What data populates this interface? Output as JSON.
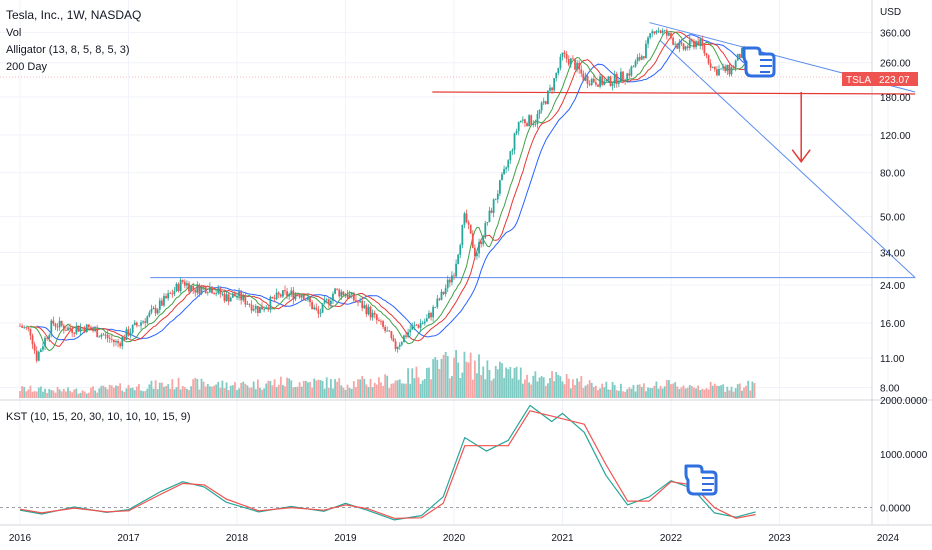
{
  "header": {
    "symbol_title": "Tesla, Inc., 1W, NASDAQ",
    "indicators": [
      "Vol",
      "Alligator (13, 8, 5, 8, 5, 3)",
      "200 Day"
    ],
    "kst_label": "KST (10, 15, 20, 30, 10, 10, 10, 15, 9)",
    "currency": "USD",
    "price_tag_symbol": "TSLA",
    "price_tag_value": "223.07"
  },
  "colors": {
    "bull": "#26a69a",
    "bear": "#ef5350",
    "bull_vol": "#7fcbc4",
    "bear_vol": "#f5a6a4",
    "alligator_jaw": "#2962ff",
    "alligator_teeth": "#e53935",
    "alligator_lips": "#43a047",
    "trendline": "#5b8def",
    "hline_red": "#e53935",
    "arrow": "#e53935",
    "kst_line": "#26a69a",
    "kst_signal": "#ef5350",
    "hand_icon": "#2f6fe0",
    "price_tag_bg": "#ef5350",
    "grid": "#f0f3fa"
  },
  "chart_data": [
    {
      "type": "candlestick",
      "title": "Tesla, Inc., 1W, NASDAQ",
      "x_ticks": [
        "2016",
        "2017",
        "2018",
        "2019",
        "2020",
        "2021",
        "2022",
        "2023",
        "2024"
      ],
      "y_scale": "log",
      "y_ticks": [
        "360.00",
        "260.00",
        "180.00",
        "120.00",
        "80.00",
        "50.00",
        "34.00",
        "24.00",
        "16.00",
        "11.00",
        "8.00"
      ],
      "ylim": [
        7,
        420
      ],
      "last_price": 223.07,
      "series": [
        {
          "name": "TSLA",
          "points": [
            {
              "t": 2016.0,
              "v": 15.5
            },
            {
              "t": 2016.1,
              "v": 14.5
            },
            {
              "t": 2016.15,
              "v": 11.0
            },
            {
              "t": 2016.3,
              "v": 16.0
            },
            {
              "t": 2016.45,
              "v": 15.0
            },
            {
              "t": 2016.6,
              "v": 15.3
            },
            {
              "t": 2016.75,
              "v": 14.2
            },
            {
              "t": 2016.9,
              "v": 12.8
            },
            {
              "t": 2017.0,
              "v": 14.5
            },
            {
              "t": 2017.2,
              "v": 17.5
            },
            {
              "t": 2017.4,
              "v": 22.0
            },
            {
              "t": 2017.5,
              "v": 25.0
            },
            {
              "t": 2017.6,
              "v": 23.0
            },
            {
              "t": 2017.75,
              "v": 23.5
            },
            {
              "t": 2017.9,
              "v": 21.0
            },
            {
              "t": 2018.0,
              "v": 21.5
            },
            {
              "t": 2018.2,
              "v": 18.5
            },
            {
              "t": 2018.4,
              "v": 21.5
            },
            {
              "t": 2018.6,
              "v": 22.0
            },
            {
              "t": 2018.75,
              "v": 17.5
            },
            {
              "t": 2018.9,
              "v": 22.5
            },
            {
              "t": 2019.0,
              "v": 22.0
            },
            {
              "t": 2019.2,
              "v": 18.5
            },
            {
              "t": 2019.4,
              "v": 14.0
            },
            {
              "t": 2019.45,
              "v": 12.2
            },
            {
              "t": 2019.6,
              "v": 15.0
            },
            {
              "t": 2019.75,
              "v": 16.5
            },
            {
              "t": 2019.9,
              "v": 22.0
            },
            {
              "t": 2020.0,
              "v": 28.0
            },
            {
              "t": 2020.1,
              "v": 50.0
            },
            {
              "t": 2020.2,
              "v": 33.0
            },
            {
              "t": 2020.35,
              "v": 55.0
            },
            {
              "t": 2020.5,
              "v": 90.0
            },
            {
              "t": 2020.6,
              "v": 140.0
            },
            {
              "t": 2020.75,
              "v": 140.0
            },
            {
              "t": 2020.9,
              "v": 200.0
            },
            {
              "t": 2021.0,
              "v": 280.0
            },
            {
              "t": 2021.1,
              "v": 260.0
            },
            {
              "t": 2021.2,
              "v": 220.0
            },
            {
              "t": 2021.4,
              "v": 210.0
            },
            {
              "t": 2021.6,
              "v": 230.0
            },
            {
              "t": 2021.75,
              "v": 290.0
            },
            {
              "t": 2021.85,
              "v": 380.0
            },
            {
              "t": 2022.0,
              "v": 340.0
            },
            {
              "t": 2022.1,
              "v": 300.0
            },
            {
              "t": 2022.25,
              "v": 330.0
            },
            {
              "t": 2022.4,
              "v": 240.0
            },
            {
              "t": 2022.55,
              "v": 240.0
            },
            {
              "t": 2022.65,
              "v": 290.0
            },
            {
              "t": 2022.75,
              "v": 250.0
            },
            {
              "t": 2022.78,
              "v": 223.07
            }
          ]
        }
      ]
    },
    {
      "type": "bar",
      "title": "Vol",
      "note": "weekly volume bars, relative scale",
      "series": [
        {
          "name": "Vol",
          "points": [
            {
              "t": 2016.0,
              "v": 0.25
            },
            {
              "t": 2016.5,
              "v": 0.2
            },
            {
              "t": 2017.0,
              "v": 0.3
            },
            {
              "t": 2017.5,
              "v": 0.4
            },
            {
              "t": 2018.0,
              "v": 0.35
            },
            {
              "t": 2018.5,
              "v": 0.45
            },
            {
              "t": 2019.0,
              "v": 0.4
            },
            {
              "t": 2019.5,
              "v": 0.5
            },
            {
              "t": 2020.0,
              "v": 1.0
            },
            {
              "t": 2020.5,
              "v": 0.7
            },
            {
              "t": 2021.0,
              "v": 0.5
            },
            {
              "t": 2021.5,
              "v": 0.3
            },
            {
              "t": 2022.0,
              "v": 0.35
            },
            {
              "t": 2022.5,
              "v": 0.3
            },
            {
              "t": 2022.78,
              "v": 0.35
            }
          ]
        }
      ]
    },
    {
      "type": "line",
      "title": "KST (10, 15, 20, 30, 10, 10, 10, 15, 9)",
      "y_ticks": [
        "2000.0000",
        "1000.0000",
        "0.0000"
      ],
      "ylim": [
        -250,
        2000
      ],
      "series": [
        {
          "name": "KST",
          "points": [
            {
              "t": 2016.0,
              "v": -50
            },
            {
              "t": 2016.2,
              "v": -120
            },
            {
              "t": 2016.5,
              "v": 10
            },
            {
              "t": 2016.8,
              "v": -90
            },
            {
              "t": 2017.0,
              "v": -40
            },
            {
              "t": 2017.3,
              "v": 300
            },
            {
              "t": 2017.5,
              "v": 480
            },
            {
              "t": 2017.7,
              "v": 380
            },
            {
              "t": 2017.9,
              "v": 100
            },
            {
              "t": 2018.2,
              "v": -80
            },
            {
              "t": 2018.5,
              "v": 20
            },
            {
              "t": 2018.8,
              "v": -70
            },
            {
              "t": 2019.0,
              "v": 80
            },
            {
              "t": 2019.2,
              "v": -50
            },
            {
              "t": 2019.45,
              "v": -230
            },
            {
              "t": 2019.7,
              "v": -150
            },
            {
              "t": 2019.9,
              "v": 200
            },
            {
              "t": 2020.1,
              "v": 1300
            },
            {
              "t": 2020.3,
              "v": 1050
            },
            {
              "t": 2020.5,
              "v": 1250
            },
            {
              "t": 2020.7,
              "v": 1900
            },
            {
              "t": 2020.9,
              "v": 1600
            },
            {
              "t": 2021.0,
              "v": 1750
            },
            {
              "t": 2021.2,
              "v": 1400
            },
            {
              "t": 2021.4,
              "v": 600
            },
            {
              "t": 2021.6,
              "v": 50
            },
            {
              "t": 2021.8,
              "v": 200
            },
            {
              "t": 2022.0,
              "v": 500
            },
            {
              "t": 2022.2,
              "v": 350
            },
            {
              "t": 2022.4,
              "v": -100
            },
            {
              "t": 2022.6,
              "v": -180
            },
            {
              "t": 2022.78,
              "v": -80
            }
          ]
        },
        {
          "name": "Signal",
          "points": [
            {
              "t": 2016.0,
              "v": -30
            },
            {
              "t": 2016.2,
              "v": -100
            },
            {
              "t": 2016.5,
              "v": -10
            },
            {
              "t": 2016.8,
              "v": -80
            },
            {
              "t": 2017.0,
              "v": -60
            },
            {
              "t": 2017.3,
              "v": 250
            },
            {
              "t": 2017.5,
              "v": 450
            },
            {
              "t": 2017.7,
              "v": 420
            },
            {
              "t": 2017.9,
              "v": 160
            },
            {
              "t": 2018.2,
              "v": -60
            },
            {
              "t": 2018.5,
              "v": 0
            },
            {
              "t": 2018.8,
              "v": -50
            },
            {
              "t": 2019.0,
              "v": 50
            },
            {
              "t": 2019.2,
              "v": -20
            },
            {
              "t": 2019.45,
              "v": -200
            },
            {
              "t": 2019.7,
              "v": -190
            },
            {
              "t": 2019.9,
              "v": 80
            },
            {
              "t": 2020.1,
              "v": 1150
            },
            {
              "t": 2020.3,
              "v": 1150
            },
            {
              "t": 2020.5,
              "v": 1150
            },
            {
              "t": 2020.7,
              "v": 1800
            },
            {
              "t": 2020.9,
              "v": 1700
            },
            {
              "t": 2021.0,
              "v": 1650
            },
            {
              "t": 2021.2,
              "v": 1550
            },
            {
              "t": 2021.4,
              "v": 800
            },
            {
              "t": 2021.6,
              "v": 120
            },
            {
              "t": 2021.8,
              "v": 120
            },
            {
              "t": 2022.0,
              "v": 480
            },
            {
              "t": 2022.2,
              "v": 420
            },
            {
              "t": 2022.4,
              "v": 0
            },
            {
              "t": 2022.6,
              "v": -200
            },
            {
              "t": 2022.78,
              "v": -130
            }
          ]
        }
      ]
    }
  ],
  "annotations": {
    "upper_trendline": {
      "from": {
        "t": 2021.8,
        "v": 400
      },
      "to": {
        "t": 2024.25,
        "v": 190
      }
    },
    "lower_trendline": {
      "from": {
        "t": 2021.9,
        "v": 330
      },
      "to": {
        "t": 2024.25,
        "v": 26
      }
    },
    "resistance_2017": {
      "from": {
        "t": 2017.2,
        "v": 26
      },
      "to": {
        "t": 2024.25,
        "v": 26
      }
    },
    "support_red": {
      "from": {
        "t": 2019.8,
        "v": 190
      },
      "to": {
        "t": 2024.25,
        "v": 186
      }
    },
    "down_arrow": {
      "from": {
        "t": 2023.2,
        "v": 190
      },
      "to": {
        "t": 2023.2,
        "v": 90
      }
    },
    "hand_icons": [
      "price-hand-icon",
      "kst-hand-icon"
    ]
  }
}
